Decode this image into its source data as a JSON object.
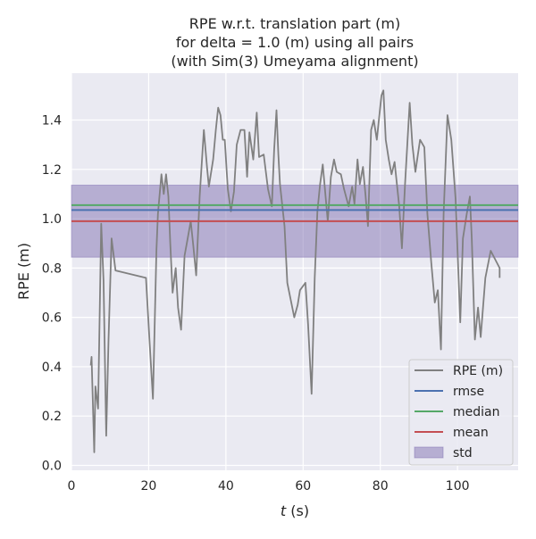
{
  "chart_data": {
    "type": "line",
    "title": [
      "RPE w.r.t. translation part (m)",
      "for delta = 1.0 (m) using all pairs",
      "(with Sim(3) Umeyama alignment)"
    ],
    "xlabel_italic": "t",
    "xlabel_rest": " (s)",
    "ylabel": "RPE (m)",
    "xlim": [
      0,
      115.7
    ],
    "ylim": [
      -0.02,
      1.59
    ],
    "xticks": [
      0,
      20,
      40,
      60,
      80,
      100
    ],
    "yticks": [
      0.0,
      0.2,
      0.4,
      0.6,
      0.8,
      1.0,
      1.2,
      1.4
    ],
    "xtick_labels": [
      "0",
      "20",
      "40",
      "60",
      "80",
      "100"
    ],
    "ytick_labels": [
      "0.0",
      "0.2",
      "0.4",
      "0.6",
      "0.8",
      "1.0",
      "1.2",
      "1.4"
    ],
    "grid": true,
    "legend_placement": "lower-right",
    "colors": {
      "background": "#EAEAF2",
      "rpe": "#808080",
      "rmse": "#4C72B0",
      "median": "#55A868",
      "mean": "#C44E52",
      "std": "#8172B2"
    },
    "stats": {
      "rmse": 1.035,
      "median": 1.055,
      "mean": 0.99,
      "std": 0.146
    },
    "legend": [
      "RPE (m)",
      "rmse",
      "median",
      "mean",
      "std"
    ],
    "series": [
      {
        "name": "RPE (m)",
        "x": [
          5.0,
          5.2,
          5.9,
          6.2,
          6.9,
          7.7,
          8.3,
          9.0,
          9.6,
          10.4,
          11.4,
          19.3,
          20.2,
          21.1,
          22.0,
          22.4,
          23.3,
          23.9,
          24.5,
          25.1,
          25.6,
          26.2,
          27.0,
          27.6,
          28.4,
          29.3,
          30.1,
          30.9,
          31.5,
          32.3,
          33.2,
          34.3,
          35.1,
          35.6,
          36.7,
          37.4,
          38.0,
          38.6,
          39.2,
          39.7,
          40.5,
          41.3,
          42.1,
          42.8,
          43.8,
          44.8,
          45.5,
          46.1,
          47.1,
          48.0,
          48.6,
          49.8,
          50.9,
          51.9,
          52.5,
          53.1,
          53.6,
          54.0,
          55.2,
          55.9,
          57.7,
          58.6,
          59.2,
          60.6,
          61.3,
          62.2,
          63.0,
          63.7,
          64.4,
          65.1,
          66.4,
          67.2,
          68.0,
          68.7,
          69.8,
          70.6,
          71.8,
          72.7,
          73.3,
          74.1,
          74.7,
          75.5,
          76.2,
          76.8,
          77.6,
          78.3,
          79.1,
          80.3,
          80.8,
          81.4,
          82.2,
          82.9,
          83.7,
          84.9,
          85.6,
          86.4,
          87.6,
          88.3,
          89.1,
          90.3,
          91.4,
          92.2,
          93.2,
          94.1,
          94.9,
          95.7,
          96.4,
          97.4,
          98.4,
          99.5,
          100.7,
          101.4,
          102.4,
          103.2,
          103.7,
          104.5,
          105.3,
          106.0,
          107.2,
          108.6,
          110.9,
          110.9
        ],
        "values": [
          0.405,
          0.44,
          0.053,
          0.32,
          0.23,
          0.98,
          0.75,
          0.12,
          0.51,
          0.92,
          0.79,
          0.76,
          0.51,
          0.27,
          0.87,
          1.02,
          1.18,
          1.1,
          1.18,
          1.09,
          0.9,
          0.7,
          0.8,
          0.64,
          0.55,
          0.85,
          0.92,
          0.99,
          0.9,
          0.77,
          1.09,
          1.36,
          1.21,
          1.13,
          1.24,
          1.36,
          1.45,
          1.42,
          1.32,
          1.32,
          1.12,
          1.03,
          1.11,
          1.3,
          1.36,
          1.36,
          1.17,
          1.35,
          1.24,
          1.43,
          1.25,
          1.26,
          1.12,
          1.05,
          1.28,
          1.44,
          1.26,
          1.14,
          0.97,
          0.74,
          0.6,
          0.65,
          0.71,
          0.74,
          0.57,
          0.29,
          0.76,
          1.03,
          1.14,
          1.22,
          0.99,
          1.17,
          1.24,
          1.19,
          1.18,
          1.12,
          1.05,
          1.13,
          1.06,
          1.24,
          1.14,
          1.21,
          1.09,
          0.97,
          1.36,
          1.4,
          1.32,
          1.5,
          1.52,
          1.32,
          1.24,
          1.18,
          1.23,
          1.05,
          0.88,
          1.14,
          1.47,
          1.3,
          1.19,
          1.32,
          1.29,
          1.02,
          0.82,
          0.66,
          0.71,
          0.47,
          1.02,
          1.42,
          1.32,
          1.08,
          0.58,
          0.92,
          1.02,
          1.09,
          0.92,
          0.51,
          0.64,
          0.52,
          0.76,
          0.87,
          0.8,
          0.76
        ]
      }
    ]
  }
}
